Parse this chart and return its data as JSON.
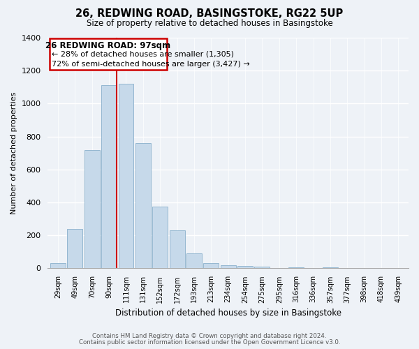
{
  "title": "26, REDWING ROAD, BASINGSTOKE, RG22 5UP",
  "subtitle": "Size of property relative to detached houses in Basingstoke",
  "xlabel": "Distribution of detached houses by size in Basingstoke",
  "ylabel": "Number of detached properties",
  "bar_labels": [
    "29sqm",
    "49sqm",
    "70sqm",
    "90sqm",
    "111sqm",
    "131sqm",
    "152sqm",
    "172sqm",
    "193sqm",
    "213sqm",
    "234sqm",
    "254sqm",
    "275sqm",
    "295sqm",
    "316sqm",
    "336sqm",
    "357sqm",
    "377sqm",
    "398sqm",
    "418sqm",
    "439sqm"
  ],
  "bar_values": [
    30,
    240,
    720,
    1110,
    1120,
    760,
    375,
    230,
    90,
    30,
    20,
    15,
    10,
    0,
    5,
    0,
    5,
    0,
    0,
    0,
    0
  ],
  "bar_color": "#c6d9ea",
  "bar_edge_color": "#8ab0cc",
  "ylim": [
    0,
    1400
  ],
  "yticks": [
    0,
    200,
    400,
    600,
    800,
    1000,
    1200,
    1400
  ],
  "annotation_title": "26 REDWING ROAD: 97sqm",
  "annotation_line1": "← 28% of detached houses are smaller (1,305)",
  "annotation_line2": "72% of semi-detached houses are larger (3,427) →",
  "annotation_box_color": "#ffffff",
  "annotation_box_edge": "#cc0000",
  "red_line_color": "#cc0000",
  "footer_line1": "Contains HM Land Registry data © Crown copyright and database right 2024.",
  "footer_line2": "Contains public sector information licensed under the Open Government Licence v3.0.",
  "background_color": "#eef2f7",
  "grid_color": "#ffffff",
  "spine_color": "#aaaaaa"
}
